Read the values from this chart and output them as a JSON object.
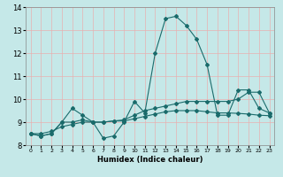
{
  "xlabel": "Humidex (Indice chaleur)",
  "xlim": [
    -0.5,
    23.5
  ],
  "ylim": [
    8,
    14
  ],
  "yticks": [
    8,
    9,
    10,
    11,
    12,
    13,
    14
  ],
  "xticks": [
    0,
    1,
    2,
    3,
    4,
    5,
    6,
    7,
    8,
    9,
    10,
    11,
    12,
    13,
    14,
    15,
    16,
    17,
    18,
    19,
    20,
    21,
    22,
    23
  ],
  "bg_color": "#c5e8e8",
  "grid_color": "#e8b0b0",
  "line_color": "#1a6b6b",
  "series1_y": [
    8.5,
    8.4,
    8.5,
    9.0,
    9.6,
    9.3,
    9.0,
    8.3,
    8.4,
    9.0,
    9.9,
    9.4,
    12.0,
    13.5,
    13.6,
    13.2,
    12.6,
    11.5,
    9.3,
    9.3,
    10.4,
    10.4,
    9.6,
    9.4
  ],
  "series2_y": [
    8.5,
    8.4,
    8.5,
    9.0,
    9.0,
    9.1,
    9.0,
    9.0,
    9.05,
    9.05,
    9.15,
    9.25,
    9.35,
    9.45,
    9.5,
    9.5,
    9.5,
    9.45,
    9.4,
    9.4,
    9.38,
    9.35,
    9.3,
    9.28
  ],
  "series3_y": [
    8.5,
    8.5,
    8.6,
    8.8,
    8.9,
    9.0,
    9.0,
    9.0,
    9.05,
    9.1,
    9.3,
    9.5,
    9.6,
    9.7,
    9.8,
    9.9,
    9.9,
    9.9,
    9.9,
    9.9,
    10.0,
    10.3,
    10.3,
    9.4
  ]
}
